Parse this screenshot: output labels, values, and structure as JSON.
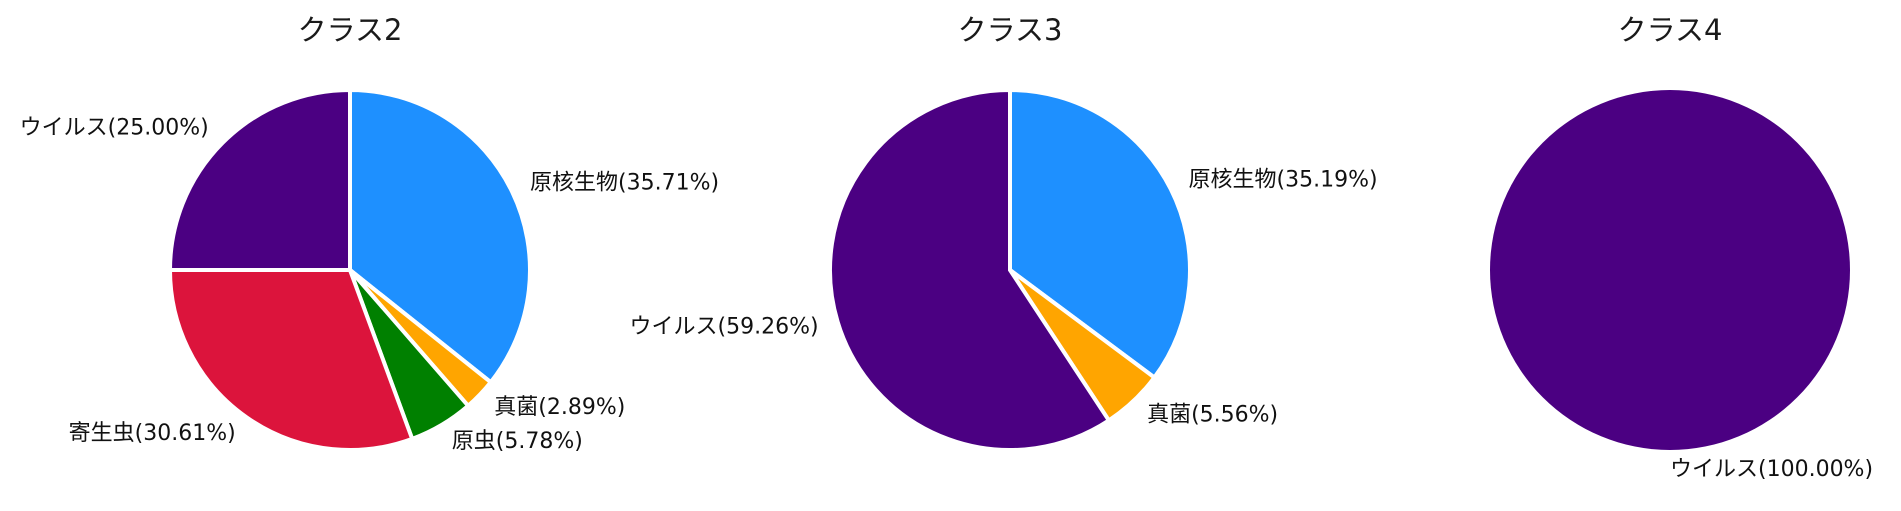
{
  "chart_data": [
    {
      "type": "pie",
      "title": "クラス2",
      "slices": [
        {
          "label": "原核生物",
          "display": "原核生物(35.71%)",
          "value": 35.71,
          "color": "#1E90FF"
        },
        {
          "label": "真菌",
          "display": "真菌(2.89%)",
          "value": 2.89,
          "color": "#FFA500"
        },
        {
          "label": "原虫",
          "display": "原虫(5.78%)",
          "value": 5.78,
          "color": "#008000"
        },
        {
          "label": "寄生虫",
          "display": "寄生虫(30.61%)",
          "value": 30.61,
          "color": "#DC143C"
        },
        {
          "label": "ウイルス",
          "display": "ウイルス(25.00%)",
          "value": 25.0,
          "color": "#4B0082"
        }
      ]
    },
    {
      "type": "pie",
      "title": "クラス3",
      "slices": [
        {
          "label": "原核生物",
          "display": "原核生物(35.19%)",
          "value": 35.19,
          "color": "#1E90FF"
        },
        {
          "label": "真菌",
          "display": "真菌(5.56%)",
          "value": 5.56,
          "color": "#FFA500"
        },
        {
          "label": "ウイルス",
          "display": "ウイルス(59.26%)",
          "value": 59.26,
          "color": "#4B0082"
        }
      ]
    },
    {
      "type": "pie",
      "title": "クラス4",
      "slices": [
        {
          "label": "ウイルス",
          "display": "ウイルス(100.00%)",
          "value": 100.0,
          "color": "#4B0082"
        }
      ]
    }
  ]
}
